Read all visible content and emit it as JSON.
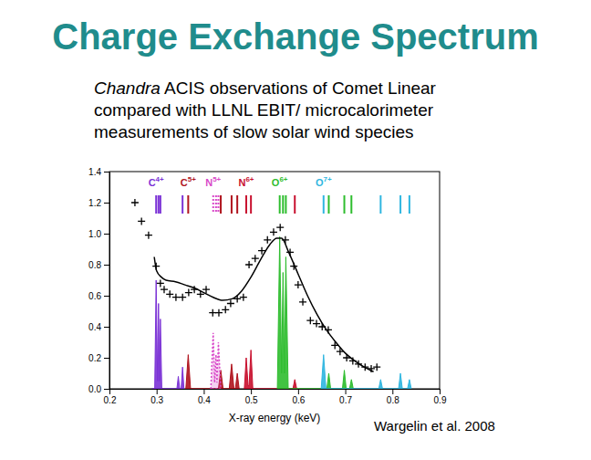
{
  "chart_data": {
    "type": "line",
    "title": "Charge Exchange Spectrum",
    "subtitle": [
      "Chandra ACIS observations of Comet Linear",
      "compared with LLNL EBIT/ microcalorimeter",
      "measurements of slow solar wind species"
    ],
    "x_label": "X-ray energy (keV)",
    "annotations": [
      "Wargelin et al. 2008"
    ],
    "xlim": [
      0.2,
      0.9
    ],
    "xticks": [
      0.2,
      0.3,
      0.4,
      0.5,
      0.6,
      0.7,
      0.8,
      0.9
    ],
    "ylim": [
      0,
      1.4
    ],
    "yticks": [
      {
        "value": 0,
        "label": "0.0"
      },
      {
        "value": 0.2,
        "label": "0.2"
      },
      {
        "value": 0.4,
        "label": "0.4"
      },
      {
        "value": 0.6,
        "label": "0.6"
      },
      {
        "value": 0.8,
        "label": "0.8"
      },
      {
        "value": 1,
        "label": "1.0"
      },
      {
        "value": 1.2,
        "label": "1.2"
      },
      {
        "value": 1.4,
        "label": "1.4"
      }
    ],
    "grid": false,
    "series": [
      {
        "name": "C4+",
        "type": "area",
        "color": "#7b32d6",
        "line_style": "solid",
        "x": [
          0.29,
          0.296,
          0.299,
          0.302,
          0.304,
          0.306,
          0.308,
          0.311,
          0.343,
          0.346,
          0.349,
          0.352,
          0.355,
          0.358
        ],
        "values": [
          0,
          0,
          0.7,
          0.05,
          0.55,
          0.05,
          0.45,
          0,
          0,
          0.08,
          0,
          0,
          0.14,
          0
        ],
        "line_energies": [
          0.299,
          0.304,
          0.308,
          0.355
        ]
      },
      {
        "name": "C5+",
        "type": "area",
        "color": "#b0141e",
        "line_style": "solid",
        "x": [
          0.362,
          0.367,
          0.372,
          0.431,
          0.436,
          0.441,
          0.454,
          0.459,
          0.464,
          0.467,
          0.471,
          0.475
        ],
        "values": [
          0,
          0.22,
          0,
          0,
          0.12,
          0,
          0,
          0.16,
          0,
          0,
          0.1,
          0
        ],
        "line_energies": [
          0.367,
          0.436,
          0.459,
          0.471
        ]
      },
      {
        "name": "N5+",
        "type": "area",
        "color": "#d848c8",
        "line_style": "dotted",
        "x": [
          0.415,
          0.42,
          0.423,
          0.426,
          0.428,
          0.431,
          0.436
        ],
        "values": [
          0,
          0.36,
          0.04,
          0.22,
          0.04,
          0.3,
          0
        ],
        "line_energies": [
          0.42,
          0.426,
          0.431
        ]
      },
      {
        "name": "N6+",
        "type": "area",
        "color": "#c8102e",
        "line_style": "solid",
        "x": [
          0.486,
          0.49,
          0.494,
          0.496,
          0.5,
          0.504,
          0.589,
          0.593,
          0.597
        ],
        "values": [
          0,
          0.2,
          0.02,
          0.02,
          0.25,
          0,
          0,
          0.06,
          0
        ],
        "line_energies": [
          0.49,
          0.5,
          0.593
        ]
      },
      {
        "name": "O6+",
        "type": "area",
        "color": "#2ebd2e",
        "line_style": "solid",
        "x": [
          0.556,
          0.561,
          0.565,
          0.568,
          0.571,
          0.574,
          0.579,
          0.661,
          0.665,
          0.669,
          0.694,
          0.698,
          0.702,
          0.709,
          0.713,
          0.717
        ],
        "values": [
          0,
          0.98,
          0.1,
          0.75,
          0.1,
          0.85,
          0,
          0,
          0.1,
          0,
          0,
          0.12,
          0,
          0,
          0.06,
          0
        ],
        "line_energies": [
          0.561,
          0.568,
          0.574,
          0.665,
          0.698,
          0.713
        ]
      },
      {
        "name": "O7+",
        "type": "area",
        "color": "#2fb6e0",
        "line_style": "solid",
        "x": [
          0.649,
          0.654,
          0.659,
          0.771,
          0.775,
          0.779,
          0.813,
          0.817,
          0.821,
          0.832,
          0.836,
          0.84
        ],
        "values": [
          0,
          0.22,
          0,
          0,
          0.06,
          0,
          0,
          0.1,
          0,
          0,
          0.06,
          0
        ],
        "line_energies": [
          0.654,
          0.775,
          0.817,
          0.836
        ]
      },
      {
        "type": "line",
        "color": "#000000",
        "line_style": "solid",
        "x": [
          0.295,
          0.3,
          0.31,
          0.32,
          0.34,
          0.36,
          0.38,
          0.4,
          0.42,
          0.44,
          0.46,
          0.48,
          0.5,
          0.52,
          0.54,
          0.555,
          0.565,
          0.58,
          0.6,
          0.62,
          0.64,
          0.66,
          0.68,
          0.7,
          0.72,
          0.74,
          0.76
        ],
        "values": [
          0.85,
          0.76,
          0.72,
          0.7,
          0.69,
          0.67,
          0.65,
          0.62,
          0.59,
          0.57,
          0.58,
          0.63,
          0.72,
          0.83,
          0.93,
          0.97,
          0.97,
          0.88,
          0.74,
          0.6,
          0.48,
          0.38,
          0.3,
          0.23,
          0.18,
          0.14,
          0.11
        ]
      },
      {
        "type": "scatter",
        "marker": "plus",
        "color": "#000000",
        "x": [
          0.254,
          0.268,
          0.283,
          0.299,
          0.308,
          0.316,
          0.328,
          0.341,
          0.355,
          0.368,
          0.38,
          0.393,
          0.405,
          0.419,
          0.432,
          0.446,
          0.457,
          0.471,
          0.484,
          0.496,
          0.509,
          0.523,
          0.535,
          0.548,
          0.562,
          0.573,
          0.583,
          0.591,
          0.6,
          0.61,
          0.626,
          0.639,
          0.651,
          0.664,
          0.678,
          0.689,
          0.703,
          0.716,
          0.728,
          0.742,
          0.755,
          0.767
        ],
        "values": [
          1.2,
          1.08,
          0.99,
          0.79,
          0.68,
          0.64,
          0.61,
          0.59,
          0.59,
          0.62,
          0.64,
          0.61,
          0.64,
          0.49,
          0.49,
          0.51,
          0.55,
          0.58,
          0.59,
          0.8,
          0.84,
          0.89,
          0.96,
          1.01,
          1.04,
          0.96,
          0.88,
          0.79,
          0.67,
          0.56,
          0.44,
          0.42,
          0.4,
          0.38,
          0.28,
          0.24,
          0.2,
          0.18,
          0.16,
          0.14,
          0.13,
          0.14
        ]
      }
    ]
  }
}
